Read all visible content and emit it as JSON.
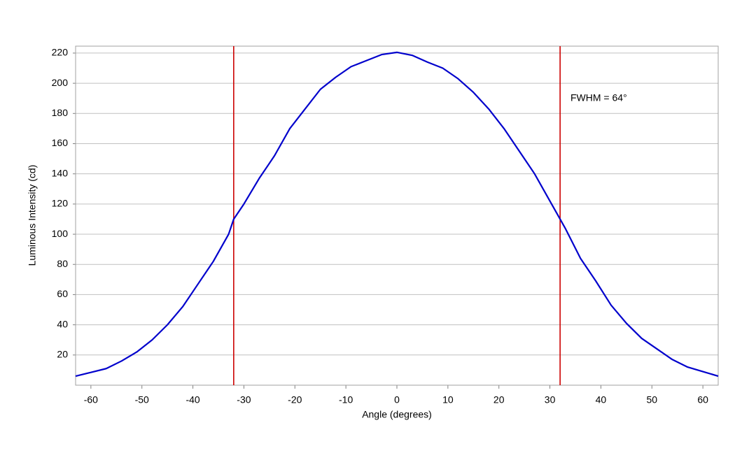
{
  "chart_data": {
    "type": "line",
    "x_label": "Angle (degrees)",
    "y_label": "Luminous Intensity (cd)",
    "annotation": "FWHM = 64°",
    "x": [
      -63,
      -60,
      -57,
      -54,
      -51,
      -48,
      -45,
      -42,
      -39,
      -36,
      -33,
      -32,
      -30,
      -27,
      -24,
      -21,
      -18,
      -15,
      -12,
      -9,
      -6,
      -3,
      0,
      3,
      6,
      9,
      12,
      15,
      18,
      21,
      24,
      27,
      30,
      32,
      33,
      36,
      39,
      42,
      45,
      48,
      51,
      54,
      57,
      60,
      63
    ],
    "series": [
      {
        "color": "#0000cc",
        "values": [
          6,
          8.5,
          11,
          16,
          22,
          30,
          40,
          52,
          67,
          82,
          100,
          110,
          120,
          137,
          152,
          170,
          183,
          196,
          204,
          211,
          215,
          219,
          220.5,
          218.5,
          214,
          210,
          203,
          194,
          183,
          170,
          155,
          140,
          122,
          110,
          104,
          84,
          69,
          53,
          41,
          31,
          24,
          17,
          12,
          9,
          6
        ]
      }
    ],
    "vlines": [
      -32,
      32
    ],
    "vline_color": "#cc0000",
    "xlim": [
      -63,
      63
    ],
    "ylim": [
      0,
      224.6
    ],
    "xticks": [
      -60,
      -50,
      -40,
      -30,
      -20,
      -10,
      0,
      10,
      20,
      30,
      40,
      50,
      60
    ],
    "yticks": [
      20,
      40,
      60,
      80,
      100,
      120,
      140,
      160,
      180,
      200,
      220
    ],
    "grid": true
  }
}
